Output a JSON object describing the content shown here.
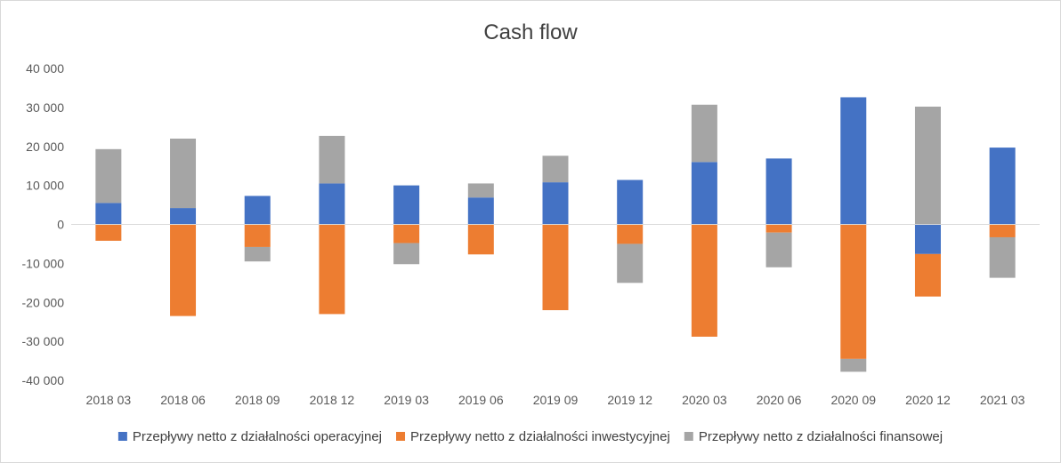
{
  "chart_data": {
    "type": "bar",
    "stacked": true,
    "title": "Cash flow",
    "xlabel": "",
    "ylabel": "",
    "categories": [
      "2018 03",
      "2018 06",
      "2018 09",
      "2018 12",
      "2019 03",
      "2019 06",
      "2019 09",
      "2019 12",
      "2020 03",
      "2020 06",
      "2020 09",
      "2020 12",
      "2021 03"
    ],
    "series": [
      {
        "name": "Przepływy netto z działalności operacyjnej",
        "color": "#4472c4",
        "values": [
          5500,
          4200,
          7300,
          10500,
          10000,
          6900,
          10800,
          11400,
          16000,
          16900,
          32600,
          -7600,
          19700
        ]
      },
      {
        "name": "Przepływy netto z działalności inwestycyjnej",
        "color": "#ed7d31",
        "values": [
          -4200,
          -23500,
          -5800,
          -23000,
          -4800,
          -7700,
          -22000,
          -5000,
          -28800,
          -2100,
          -34500,
          -10900,
          -3300
        ]
      },
      {
        "name": "Przepływy netto z działalności finansowej",
        "color": "#a5a5a5",
        "values": [
          13800,
          17800,
          -3700,
          12200,
          -5400,
          3600,
          6800,
          -10000,
          14700,
          -8900,
          -3300,
          30200,
          -10400
        ]
      }
    ],
    "ylim": [
      -40000,
      40000
    ],
    "yticks": [
      "40 000",
      "30 000",
      "20 000",
      "10 000",
      "0",
      "-10 000",
      "-20 000",
      "-30 000",
      "-40 000"
    ],
    "grid": false,
    "legend": "bottom"
  }
}
